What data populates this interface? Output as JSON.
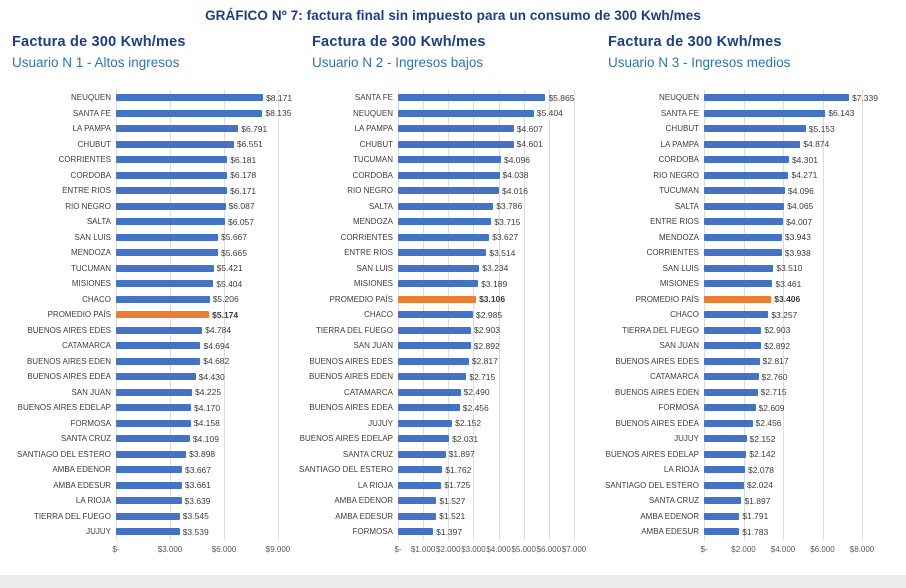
{
  "page": {
    "title": "GRÁFICO Nº 7: factura final sin impuesto para un consumo de 300 Kwh/mes"
  },
  "colors": {
    "bar_blue": "#4472C4",
    "bar_orange": "#ED7D31",
    "title_navy": "#1d3d8a",
    "subtitle_blue": "#2e74b5",
    "gridline": "#dcdcdc",
    "label_text": "#3d3d3d",
    "axis_text": "#595959"
  },
  "chart_data": [
    {
      "type": "bar",
      "orientation": "horizontal",
      "panel_title": "Factura de 300 Kwh/mes",
      "panel_subtitle": "Usuario N 1 - Altos ingresos",
      "xlim": [
        0,
        9000
      ],
      "tick_values": [
        0,
        3000,
        6000,
        9000
      ],
      "x_ticks": [
        "$-",
        "$3.000",
        "$6.000",
        "$9.000"
      ],
      "grid": true,
      "highlight_category": "PROMEDIO PAÍS",
      "rows": [
        {
          "label": "NEUQUEN",
          "value": 8171,
          "display": "$8.171"
        },
        {
          "label": "SANTA FE",
          "value": 8135,
          "display": "$8.135"
        },
        {
          "label": "LA PAMPA",
          "value": 6791,
          "display": "$6.791"
        },
        {
          "label": "CHUBUT",
          "value": 6551,
          "display": "$6.551"
        },
        {
          "label": "CORRIENTES",
          "value": 6181,
          "display": "$6.181"
        },
        {
          "label": "CORDOBA",
          "value": 6178,
          "display": "$6.178"
        },
        {
          "label": "ENTRE RIOS",
          "value": 6171,
          "display": "$6.171"
        },
        {
          "label": "RIO NEGRO",
          "value": 6087,
          "display": "$6.087"
        },
        {
          "label": "SALTA",
          "value": 6057,
          "display": "$6.057"
        },
        {
          "label": "SAN LUIS",
          "value": 5667,
          "display": "$5.667"
        },
        {
          "label": "MENDOZA",
          "value": 5665,
          "display": "$5.665"
        },
        {
          "label": "TUCUMAN",
          "value": 5421,
          "display": "$5.421"
        },
        {
          "label": "MISIONES",
          "value": 5404,
          "display": "$5.404"
        },
        {
          "label": "CHACO",
          "value": 5206,
          "display": "$5.206"
        },
        {
          "label": "PROMEDIO PAÍS",
          "value": 5174,
          "display": "$5.174",
          "highlight": true
        },
        {
          "label": "BUENOS AIRES EDES",
          "value": 4784,
          "display": "$4.784"
        },
        {
          "label": "CATAMARCA",
          "value": 4694,
          "display": "$4.694"
        },
        {
          "label": "BUENOS AIRES EDEN",
          "value": 4682,
          "display": "$4.682"
        },
        {
          "label": "BUENOS AIRES EDEA",
          "value": 4430,
          "display": "$4.430"
        },
        {
          "label": "SAN JUAN",
          "value": 4225,
          "display": "$4.225"
        },
        {
          "label": "BUENOS AIRES EDELAP",
          "value": 4170,
          "display": "$4.170"
        },
        {
          "label": "FORMOSA",
          "value": 4158,
          "display": "$4.158"
        },
        {
          "label": "SANTA CRUZ",
          "value": 4109,
          "display": "$4.109"
        },
        {
          "label": "SANTIAGO DEL ESTERO",
          "value": 3898,
          "display": "$3.898"
        },
        {
          "label": "AMBA EDENOR",
          "value": 3667,
          "display": "$3.667"
        },
        {
          "label": "AMBA EDESUR",
          "value": 3661,
          "display": "$3.661"
        },
        {
          "label": "LA RIOJA",
          "value": 3639,
          "display": "$3.639"
        },
        {
          "label": "TIERRA DEL FUEGO",
          "value": 3545,
          "display": "$3.545"
        },
        {
          "label": "JUJUY",
          "value": 3539,
          "display": "$3.539"
        }
      ]
    },
    {
      "type": "bar",
      "orientation": "horizontal",
      "panel_title": "Factura de 300 Kwh/mes",
      "panel_subtitle": "Usuario N 2 - Ingresos bajos",
      "xlim": [
        0,
        7000
      ],
      "tick_values": [
        0,
        1000,
        2000,
        3000,
        4000,
        5000,
        6000,
        7000
      ],
      "x_ticks": [
        "$-",
        "$1.000",
        "$2.000",
        "$3.000",
        "$4.000",
        "$5.000",
        "$6.000",
        "$7.000"
      ],
      "grid": true,
      "highlight_category": "PROMEDIO PAÍS",
      "rows": [
        {
          "label": "SANTA FE",
          "value": 5865,
          "display": "$5.865"
        },
        {
          "label": "NEUQUEN",
          "value": 5404,
          "display": "$5.404"
        },
        {
          "label": "LA PAMPA",
          "value": 4607,
          "display": "$4.607"
        },
        {
          "label": "CHUBUT",
          "value": 4601,
          "display": "$4.601"
        },
        {
          "label": "TUCUMAN",
          "value": 4096,
          "display": "$4.096"
        },
        {
          "label": "CORDOBA",
          "value": 4038,
          "display": "$4.038"
        },
        {
          "label": "RIO NEGRO",
          "value": 4016,
          "display": "$4.016"
        },
        {
          "label": "SALTA",
          "value": 3786,
          "display": "$3.786"
        },
        {
          "label": "MENDOZA",
          "value": 3715,
          "display": "$3.715"
        },
        {
          "label": "CORRIENTES",
          "value": 3627,
          "display": "$3.627"
        },
        {
          "label": "ENTRE RIOS",
          "value": 3514,
          "display": "$3.514"
        },
        {
          "label": "SAN LUIS",
          "value": 3234,
          "display": "$3.234"
        },
        {
          "label": "MISIONES",
          "value": 3189,
          "display": "$3.189"
        },
        {
          "label": "PROMEDIO PAÍS",
          "value": 3106,
          "display": "$3.106",
          "highlight": true
        },
        {
          "label": "CHACO",
          "value": 2985,
          "display": "$2.985"
        },
        {
          "label": "TIERRA DEL FUEGO",
          "value": 2903,
          "display": "$2.903"
        },
        {
          "label": "SAN JUAN",
          "value": 2892,
          "display": "$2.892"
        },
        {
          "label": "BUENOS AIRES EDES",
          "value": 2817,
          "display": "$2.817"
        },
        {
          "label": "BUENOS AIRES EDEN",
          "value": 2715,
          "display": "$2.715"
        },
        {
          "label": "CATAMARCA",
          "value": 2490,
          "display": "$2.490"
        },
        {
          "label": "BUENOS AIRES EDEA",
          "value": 2456,
          "display": "$2.456"
        },
        {
          "label": "JUJUY",
          "value": 2152,
          "display": "$2.152"
        },
        {
          "label": "BUENOS AIRES EDELAP",
          "value": 2031,
          "display": "$2.031"
        },
        {
          "label": "SANTA CRUZ",
          "value": 1897,
          "display": "$1.897"
        },
        {
          "label": "SANTIAGO DEL ESTERO",
          "value": 1762,
          "display": "$1.762"
        },
        {
          "label": "LA RIOJA",
          "value": 1725,
          "display": "$1.725"
        },
        {
          "label": "AMBA EDENOR",
          "value": 1527,
          "display": "$1.527"
        },
        {
          "label": "AMBA EDESUR",
          "value": 1521,
          "display": "$1.521"
        },
        {
          "label": "FORMOSA",
          "value": 1397,
          "display": "$1.397"
        }
      ]
    },
    {
      "type": "bar",
      "orientation": "horizontal",
      "panel_title": "Factura de 300 Kwh/mes",
      "panel_subtitle": "Usuario N 3 - Ingresos medios",
      "xlim": [
        0,
        8000
      ],
      "tick_values": [
        0,
        2000,
        4000,
        6000,
        8000
      ],
      "x_ticks": [
        "$-",
        "$2.000",
        "$4.000",
        "$6.000",
        "$8.000"
      ],
      "grid": true,
      "highlight_category": "PROMEDIO PAÍS",
      "rows": [
        {
          "label": "NEUQUEN",
          "value": 7339,
          "display": "$7.339"
        },
        {
          "label": "SANTA FE",
          "value": 6143,
          "display": "$6.143"
        },
        {
          "label": "CHUBUT",
          "value": 5153,
          "display": "$5.153"
        },
        {
          "label": "LA PAMPA",
          "value": 4874,
          "display": "$4.874"
        },
        {
          "label": "CORDOBA",
          "value": 4301,
          "display": "$4.301"
        },
        {
          "label": "RIO NEGRO",
          "value": 4271,
          "display": "$4.271"
        },
        {
          "label": "TUCUMAN",
          "value": 4096,
          "display": "$4.096"
        },
        {
          "label": "SALTA",
          "value": 4065,
          "display": "$4.065"
        },
        {
          "label": "ENTRE RIOS",
          "value": 4007,
          "display": "$4.007"
        },
        {
          "label": "MENDOZA",
          "value": 3943,
          "display": "$3.943"
        },
        {
          "label": "CORRIENTES",
          "value": 3938,
          "display": "$3.938"
        },
        {
          "label": "SAN LUIS",
          "value": 3510,
          "display": "$3.510"
        },
        {
          "label": "MISIONES",
          "value": 3461,
          "display": "$3.461"
        },
        {
          "label": "PROMEDIO PAÍS",
          "value": 3406,
          "display": "$3.406",
          "highlight": true
        },
        {
          "label": "CHACO",
          "value": 3257,
          "display": "$3.257"
        },
        {
          "label": "TIERRA DEL FUEGO",
          "value": 2903,
          "display": "$2.903"
        },
        {
          "label": "SAN JUAN",
          "value": 2892,
          "display": "$2.892"
        },
        {
          "label": "BUENOS AIRES EDES",
          "value": 2817,
          "display": "$2.817"
        },
        {
          "label": "CATAMARCA",
          "value": 2760,
          "display": "$2.760"
        },
        {
          "label": "BUENOS AIRES EDEN",
          "value": 2715,
          "display": "$2.715"
        },
        {
          "label": "FORMOSA",
          "value": 2609,
          "display": "$2.609"
        },
        {
          "label": "BUENOS AIRES EDEA",
          "value": 2456,
          "display": "$2.456"
        },
        {
          "label": "JUJUY",
          "value": 2152,
          "display": "$2.152"
        },
        {
          "label": "BUENOS AIRES EDELAP",
          "value": 2142,
          "display": "$2.142"
        },
        {
          "label": "LA RIOJA",
          "value": 2078,
          "display": "$2.078"
        },
        {
          "label": "SANTIAGO DEL ESTERO",
          "value": 2024,
          "display": "$2.024"
        },
        {
          "label": "SANTA CRUZ",
          "value": 1897,
          "display": "$1.897"
        },
        {
          "label": "AMBA EDENOR",
          "value": 1791,
          "display": "$1.791"
        },
        {
          "label": "AMBA EDESUR",
          "value": 1783,
          "display": "$1.783"
        }
      ]
    }
  ]
}
